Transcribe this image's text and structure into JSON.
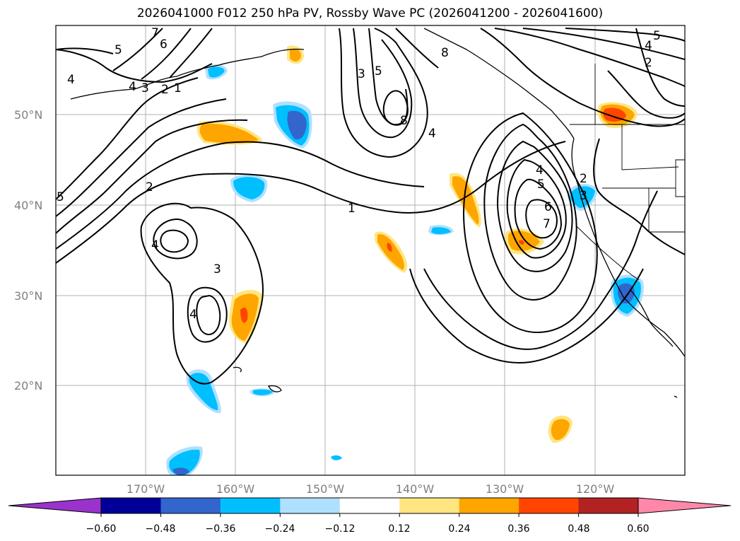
{
  "title": "2026041000 F012 250 hPa PV, Rossby Wave PC (2026041200 - 2026041600)",
  "map": {
    "lat_ticks": [
      "50°N",
      "40°N",
      "30°N",
      "20°N"
    ],
    "lon_ticks": [
      "170°W",
      "160°W",
      "150°W",
      "140°W",
      "130°W",
      "120°W"
    ],
    "contour_labels": [
      "7",
      "6",
      "5",
      "4",
      "4",
      "3",
      "2",
      "1",
      "2",
      "4",
      "3",
      "4",
      "5",
      "1",
      "3",
      "5",
      "8",
      "8",
      "4",
      "4",
      "5",
      "6",
      "7",
      "2",
      "3",
      "5",
      "4",
      "2"
    ]
  },
  "colorbar": {
    "ticks": [
      "−0.60",
      "−0.48",
      "−0.36",
      "−0.24",
      "−0.12",
      "0.12",
      "0.24",
      "0.36",
      "0.48",
      "0.60"
    ],
    "colors": {
      "under": "#9933cc",
      "bins": [
        "#9933cc",
        "#000099",
        "#3366cc",
        "#00bfff",
        "#b0e0ff",
        "#ffffff",
        "#ffe680",
        "#ffa500",
        "#ff4500",
        "#b22222",
        "#ff88aa"
      ],
      "over": "#ff88aa"
    }
  }
}
